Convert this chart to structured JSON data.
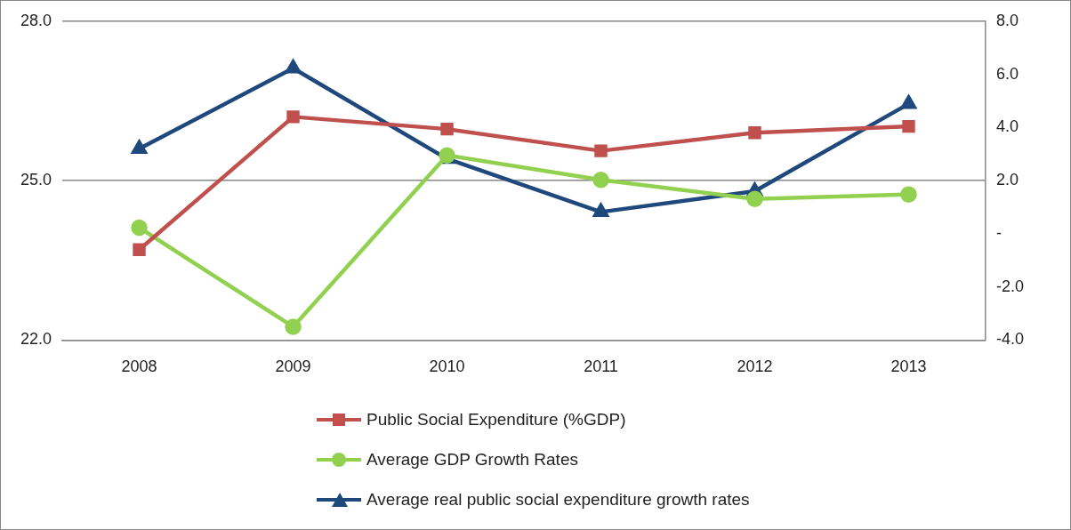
{
  "chart_data": {
    "type": "line",
    "categories": [
      "2008",
      "2009",
      "2010",
      "2011",
      "2012",
      "2013"
    ],
    "series": [
      {
        "name": "Public Social Expenditure (%GDP)",
        "color": "#c0504d",
        "marker": "square",
        "values": [
          23.7,
          26.2,
          25.97,
          25.56,
          25.9,
          26.02
        ]
      },
      {
        "name": "Average GDP Growth Rates",
        "color": "#92d050",
        "marker": "circle",
        "axis": "y2",
        "values": [
          0.23,
          -3.5,
          2.95,
          2.03,
          1.31,
          1.48
        ]
      },
      {
        "name": "Average real public social expenditure growth rates",
        "color": "#1f497d",
        "marker": "triangle",
        "axis": "y2",
        "values": [
          3.2,
          6.23,
          2.82,
          0.82,
          1.6,
          4.89
        ]
      }
    ],
    "ylim": [
      22,
      28
    ],
    "yticks": [
      {
        "value": 22,
        "label": "22.0"
      },
      {
        "value": 25,
        "label": "25.0"
      },
      {
        "value": 28,
        "label": "28.0"
      }
    ],
    "y2lim": [
      -4,
      8
    ],
    "y2ticks": [
      {
        "value": -4,
        "label": "-4.0"
      },
      {
        "value": -2,
        "label": "-2.0"
      },
      {
        "value": 0,
        "label": "-"
      },
      {
        "value": 2,
        "label": "2.0"
      },
      {
        "value": 4,
        "label": "4.0"
      },
      {
        "value": 6,
        "label": "6.0"
      },
      {
        "value": 8,
        "label": "8.0"
      }
    ],
    "grid": "y",
    "legend": "bottom",
    "line_style": "solid"
  }
}
